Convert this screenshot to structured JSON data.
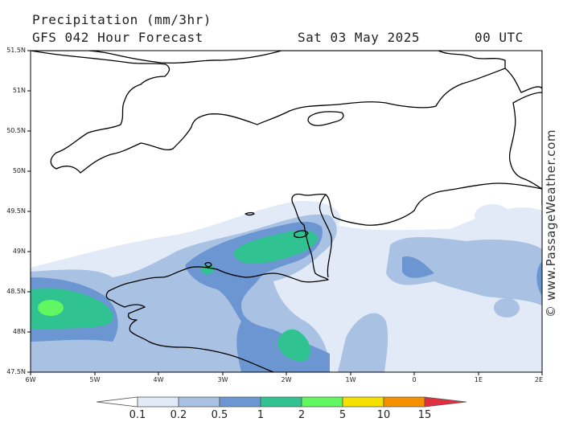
{
  "header": {
    "title": "Precipitation (mm/3hr)",
    "subtitle": "GFS 042 Hour Forecast",
    "date": "Sat 03 May 2025",
    "time": "00 UTC"
  },
  "lat_labels": [
    "51.5N",
    "51N",
    "50.5N",
    "50N",
    "49.5N",
    "49N",
    "48.5N",
    "48N",
    "47.5N"
  ],
  "lon_labels": [
    "6W",
    "5W",
    "4W",
    "3W",
    "2W",
    "1W",
    "0",
    "1E",
    "2E"
  ],
  "credit": "© www.PassageWeather.com",
  "legend": {
    "labels": [
      "0.1",
      "0.2",
      "0.5",
      "1",
      "2",
      "5",
      "10",
      "15"
    ],
    "colors": [
      "#e1eaf6",
      "#a9c1e2",
      "#6c96d2",
      "#30c391",
      "#60f760",
      "#f5e000",
      "#f59000",
      "#e03040"
    ]
  },
  "map": {
    "extent": {
      "lon": [
        -6,
        2
      ],
      "lat": [
        47.5,
        51.5
      ]
    },
    "land_color": "#ffffff",
    "coastline_color": "#000000",
    "regions": [
      "England south coast",
      "Isle of Wight",
      "Channel Islands",
      "Normandy",
      "Brittany"
    ]
  }
}
